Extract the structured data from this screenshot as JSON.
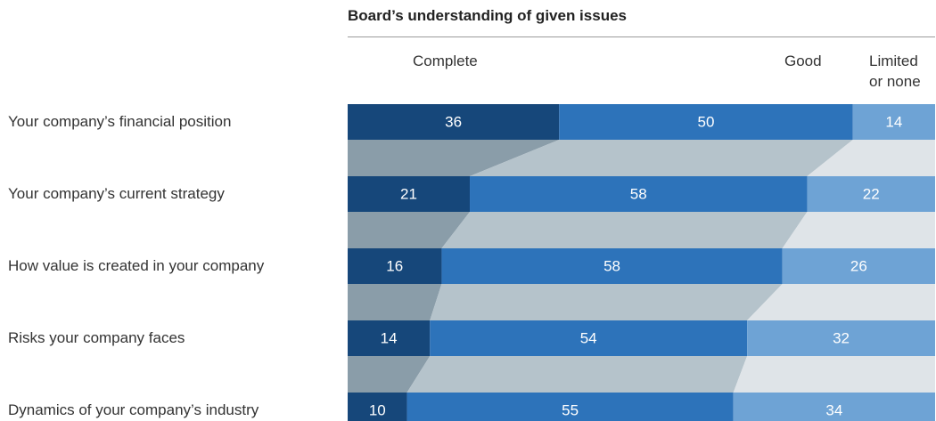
{
  "chart_data": {
    "type": "bar",
    "stacked": true,
    "orientation": "horizontal",
    "title": "Board’s understanding of given issues",
    "categories": [
      "Your company’s financial position",
      "Your company’s current strategy",
      "How value is created in your company",
      "Risks your company faces",
      "Dynamics of your company’s industry"
    ],
    "series": [
      {
        "name": "Complete",
        "values": [
          36,
          21,
          16,
          14,
          10
        ],
        "color": "#16477a"
      },
      {
        "name": "Good",
        "values": [
          50,
          58,
          58,
          54,
          55
        ],
        "color": "#2d73ba"
      },
      {
        "name": "Limited or none",
        "values": [
          14,
          22,
          26,
          32,
          34
        ],
        "color": "#6ea3d5"
      }
    ],
    "legend_placement": "top",
    "label_color": "#ffffff",
    "connector_colors": [
      "#8a9da9",
      "#b5c3cb",
      "#dfe4e8"
    ]
  }
}
